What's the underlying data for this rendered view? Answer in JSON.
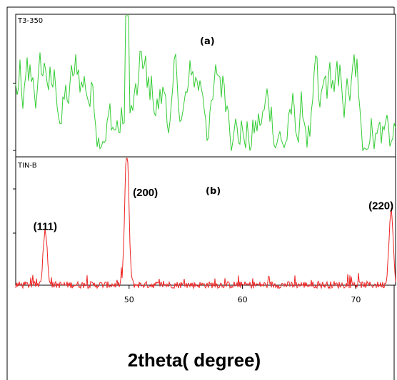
{
  "chart_data": [
    {
      "type": "line",
      "panel": "(a)",
      "sample_label": "T3-350",
      "color": "#33cc33",
      "x_range": [
        40,
        73.5
      ],
      "y_range": [
        0,
        100
      ],
      "y_scale": "relative intensity (no tick labels)",
      "pattern": "noisy amorphous-like signal, no clear peaks except a spike near 49.8",
      "peaks": [
        {
          "x": 49.8,
          "y": 100
        }
      ]
    },
    {
      "type": "line",
      "panel": "(b)",
      "sample_label": "TIN-B",
      "color": "#ee2222",
      "x_range": [
        40,
        73.5
      ],
      "y_range": [
        0,
        100
      ],
      "y_scale": "relative intensity (no tick labels)",
      "baseline": 6,
      "peaks": [
        {
          "hkl": "(111)",
          "x": 42.6,
          "y": 40
        },
        {
          "hkl": "(200)",
          "x": 49.8,
          "y": 100
        },
        {
          "hkl": "(220)",
          "x": 73.1,
          "y": 55
        }
      ]
    }
  ],
  "x_axis": {
    "title": "2theta( degree)",
    "ticks": [
      {
        "value": 50,
        "label": "50"
      },
      {
        "value": 60,
        "label": "60"
      },
      {
        "value": 70,
        "label": "70"
      }
    ]
  }
}
